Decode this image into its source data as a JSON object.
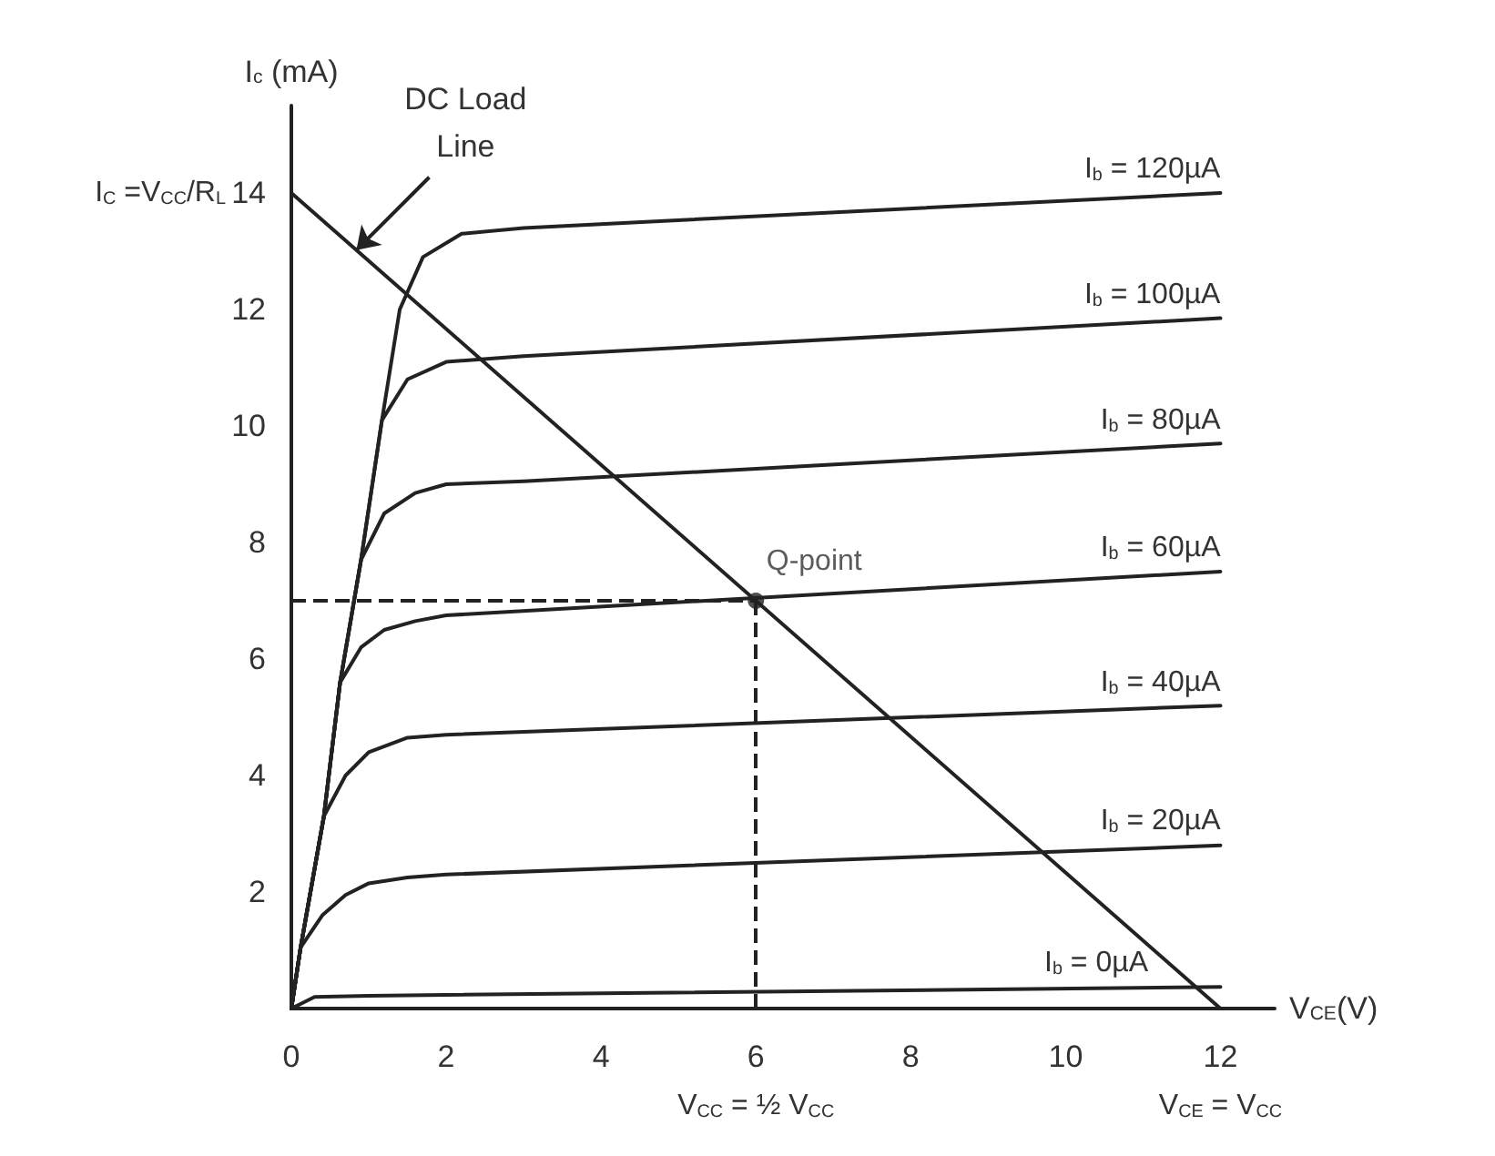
{
  "chart_data": {
    "type": "line",
    "xlabel": "V$_{CE}$(V)",
    "ylabel": "I$_{c}$ (mA)",
    "xlim": [
      0,
      12.7
    ],
    "ylim": [
      0,
      15.5
    ],
    "xticks": [
      0,
      2,
      4,
      6,
      8,
      10,
      12
    ],
    "yticks": [
      2,
      4,
      6,
      8,
      10,
      12,
      14
    ],
    "grid": false,
    "legend": false,
    "marker": "none",
    "line_style": "solid",
    "series": [
      {
        "name": "I$_{b}$ = 120µA",
        "color": "#222222",
        "x": [
          0,
          0.12,
          0.42,
          0.63,
          0.9,
          1.17,
          1.4,
          1.7,
          2.2,
          3.0,
          12
        ],
        "values": [
          0,
          1.05,
          3.3,
          5.6,
          7.7,
          10.1,
          12.0,
          12.9,
          13.3,
          13.4,
          14.0
        ]
      },
      {
        "name": "I$_{b}$ = 100µA",
        "color": "#222222",
        "x": [
          0,
          0.12,
          0.42,
          0.63,
          0.9,
          1.17,
          1.5,
          2.0,
          3.0,
          12
        ],
        "values": [
          0,
          1.05,
          3.3,
          5.6,
          7.7,
          10.1,
          10.8,
          11.1,
          11.2,
          11.85
        ]
      },
      {
        "name": "I$_{b}$ = 80µA",
        "color": "#222222",
        "x": [
          0,
          0.12,
          0.42,
          0.63,
          0.9,
          1.2,
          1.6,
          2.0,
          3.0,
          12
        ],
        "values": [
          0,
          1.05,
          3.3,
          5.6,
          7.7,
          8.5,
          8.85,
          9.0,
          9.05,
          9.7
        ]
      },
      {
        "name": "I$_{b}$ = 60µA",
        "color": "#222222",
        "x": [
          0,
          0.12,
          0.42,
          0.63,
          0.9,
          1.2,
          1.6,
          2.0,
          12
        ],
        "values": [
          0,
          1.05,
          3.3,
          5.6,
          6.2,
          6.5,
          6.65,
          6.75,
          7.5
        ]
      },
      {
        "name": "I$_{b}$ = 40µA",
        "color": "#222222",
        "x": [
          0,
          0.12,
          0.42,
          0.7,
          1.0,
          1.5,
          2.0,
          12
        ],
        "values": [
          0,
          1.05,
          3.3,
          4.0,
          4.4,
          4.65,
          4.7,
          5.2
        ]
      },
      {
        "name": "I$_{b}$ = 20µA",
        "color": "#222222",
        "x": [
          0,
          0.12,
          0.4,
          0.7,
          1.0,
          1.5,
          2.0,
          12
        ],
        "values": [
          0,
          1.05,
          1.6,
          1.95,
          2.15,
          2.25,
          2.3,
          2.8
        ]
      },
      {
        "name": "I$_{b}$ = 0µA",
        "color": "#222222",
        "x": [
          0,
          0.3,
          1,
          12
        ],
        "values": [
          0,
          0.2,
          0.22,
          0.37
        ]
      },
      {
        "color": "#222222",
        "x": [
          0,
          12
        ],
        "values": [
          14,
          0
        ]
      },
      {
        "name": "Q-point",
        "type": "scatter",
        "marker": "circle",
        "color": "#222222",
        "x": [
          6
        ],
        "values": [
          7
        ]
      }
    ],
    "ref_lines": [
      {
        "axis": "y",
        "value": 7,
        "line_style": "dashed",
        "color": "#222222"
      },
      {
        "axis": "x",
        "value": 6,
        "line_style": "dashed",
        "color": "#222222"
      }
    ],
    "annotations": [
      {
        "text": "DC Load Line",
        "x": 0.84,
        "y": 13.02
      },
      {
        "text": "I$_{C}$ =V$_{CC}$/R$_{L}$",
        "x": 0,
        "y": 14
      },
      {
        "text": "V$_{CC}$ = ½ V$_{CC}$",
        "x": 6,
        "y": 0
      },
      {
        "text": "V$_{CE}$ = V$_{CC}$",
        "x": 12,
        "y": 0
      }
    ]
  }
}
